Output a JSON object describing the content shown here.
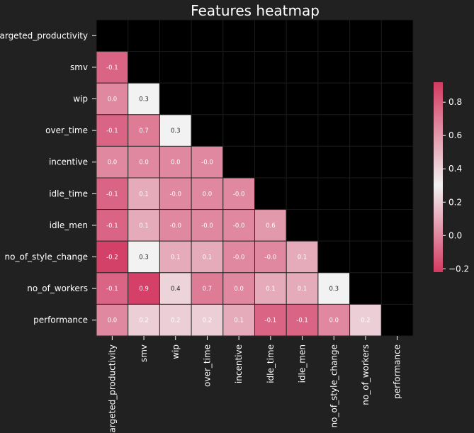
{
  "chart_data": {
    "type": "heatmap",
    "title": "Features heatmap",
    "variables": [
      "targeted_productivity",
      "smv",
      "wip",
      "over_time",
      "incentive",
      "idle_time",
      "idle_men",
      "no_of_style_change",
      "no_of_workers",
      "performance"
    ],
    "values": [
      [
        null,
        null,
        null,
        null,
        null,
        null,
        null,
        null,
        null,
        null
      ],
      [
        -0.1,
        null,
        null,
        null,
        null,
        null,
        null,
        null,
        null,
        null
      ],
      [
        0.0,
        0.3,
        null,
        null,
        null,
        null,
        null,
        null,
        null,
        null
      ],
      [
        -0.1,
        0.7,
        0.3,
        null,
        null,
        null,
        null,
        null,
        null,
        null
      ],
      [
        0.0,
        0.0,
        0.0,
        -0.0,
        null,
        null,
        null,
        null,
        null,
        null
      ],
      [
        -0.1,
        0.1,
        -0.0,
        0.0,
        -0.0,
        null,
        null,
        null,
        null,
        null
      ],
      [
        -0.1,
        0.1,
        -0.0,
        -0.0,
        -0.0,
        0.6,
        null,
        null,
        null,
        null
      ],
      [
        -0.2,
        0.3,
        0.1,
        0.1,
        -0.0,
        -0.0,
        0.1,
        null,
        null,
        null
      ],
      [
        -0.1,
        0.9,
        0.4,
        0.7,
        0.0,
        0.1,
        0.1,
        0.3,
        null,
        null
      ],
      [
        0.0,
        0.2,
        0.2,
        0.2,
        0.1,
        -0.1,
        -0.1,
        0.0,
        0.2,
        null
      ]
    ],
    "cell_text": [
      [
        "",
        "",
        "",
        "",
        "",
        "",
        "",
        "",
        "",
        ""
      ],
      [
        "-0.1",
        "",
        "",
        "",
        "",
        "",
        "",
        "",
        "",
        ""
      ],
      [
        "0.0",
        "0.3",
        "",
        "",
        "",
        "",
        "",
        "",
        "",
        ""
      ],
      [
        "-0.1",
        "0.7",
        "0.3",
        "",
        "",
        "",
        "",
        "",
        "",
        ""
      ],
      [
        "0.0",
        "0.0",
        "0.0",
        "-0.0",
        "",
        "",
        "",
        "",
        "",
        ""
      ],
      [
        "-0.1",
        "0.1",
        "-0.0",
        "0.0",
        "-0.0",
        "",
        "",
        "",
        "",
        ""
      ],
      [
        "-0.1",
        "0.1",
        "-0.0",
        "-0.0",
        "-0.0",
        "0.6",
        "",
        "",
        "",
        ""
      ],
      [
        "-0.2",
        "0.3",
        "0.1",
        "0.1",
        "-0.0",
        "-0.0",
        "0.1",
        "",
        "",
        ""
      ],
      [
        "-0.1",
        "0.9",
        "0.4",
        "0.7",
        "0.0",
        "0.1",
        "0.1",
        "0.3",
        "",
        ""
      ],
      [
        "0.0",
        "0.2",
        "0.2",
        "0.2",
        "0.1",
        "-0.1",
        "-0.1",
        "0.0",
        "0.2",
        ""
      ]
    ],
    "colorbar": {
      "min": -0.22,
      "max": 0.92,
      "center": 0.3,
      "ticks": [
        -0.2,
        0.0,
        0.2,
        0.4,
        0.6,
        0.8
      ],
      "tick_labels": [
        "−0.2",
        "0.0",
        "0.2",
        "0.4",
        "0.6",
        "0.8"
      ]
    },
    "colors": {
      "background": "#212121",
      "masked_cell": "#000000",
      "low": "#d33a62",
      "mid": "#f2f2f2",
      "high": "#d33a62"
    },
    "mask": "upper-triangle-including-diagonal",
    "legend": "right"
  }
}
